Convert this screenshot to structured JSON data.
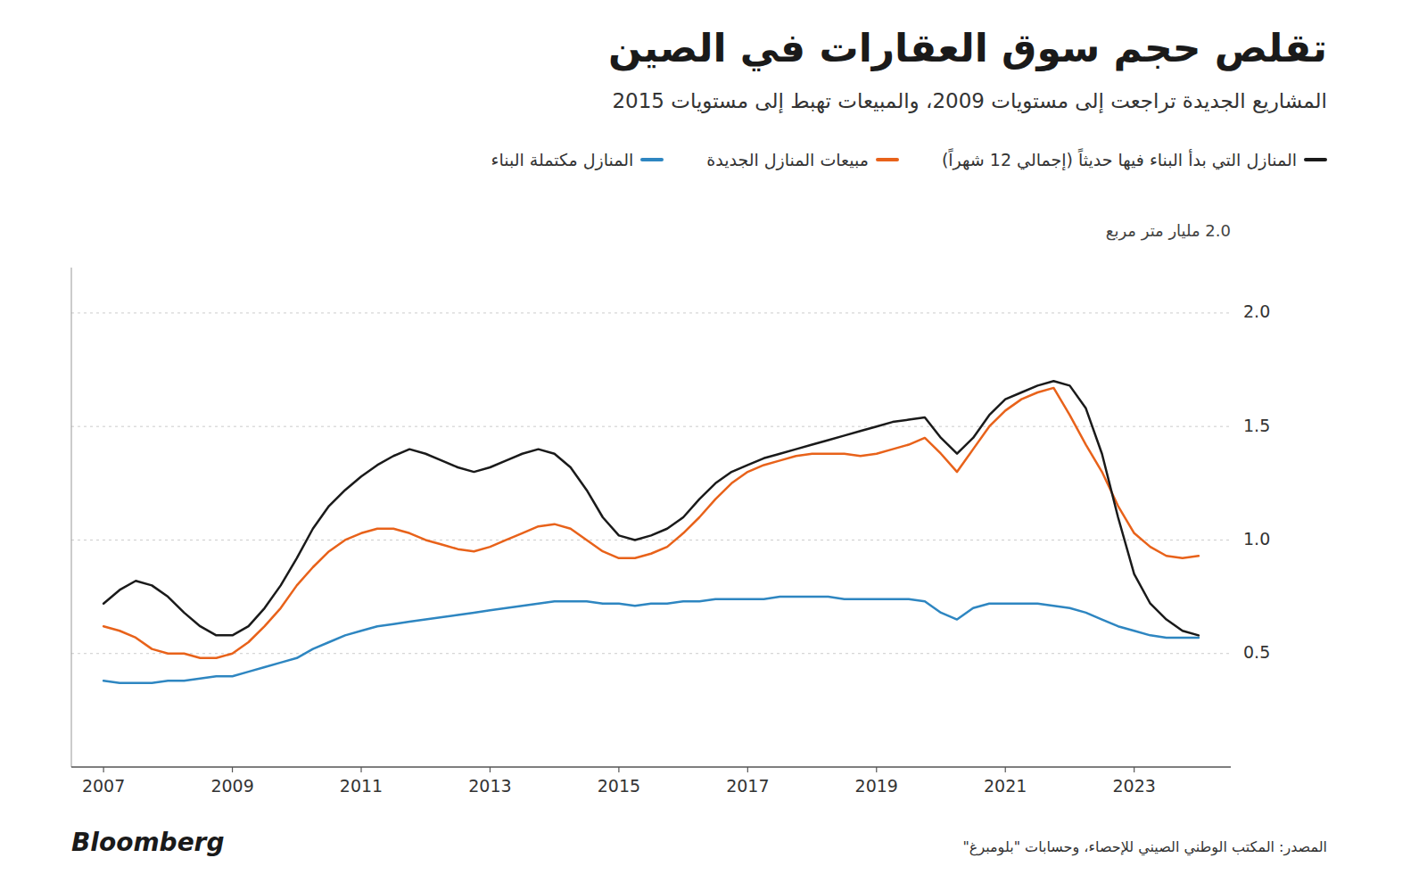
{
  "chart_data": {
    "type": "line",
    "title": "تقلص حجم سوق العقارات في الصين",
    "subtitle": "المشاريع الجديدة تراجعت إلى مستويات 2009، والمبيعات تهبط إلى مستويات 2015",
    "y_label": "2.0 مليار متر مربع",
    "source": "المصدر: المكتب الوطني الصيني للإحصاء، وحسابات \"بلومبرغ\"",
    "credit": "Bloomberg",
    "grid": true,
    "legend": "top",
    "xlim": [
      2006.5,
      2024.5
    ],
    "xticks": [
      2007,
      2009,
      2011,
      2013,
      2015,
      2017,
      2019,
      2021,
      2023
    ],
    "ylim": [
      0,
      2.2
    ],
    "yticks": [
      0.5,
      {
        "value": 1.0,
        "label": "1.0"
      },
      1.5,
      {
        "value": 2.0,
        "label": "2.0"
      }
    ],
    "x": [
      2007.0,
      2007.25,
      2007.5,
      2007.75,
      2008.0,
      2008.25,
      2008.5,
      2008.75,
      2009.0,
      2009.25,
      2009.5,
      2009.75,
      2010.0,
      2010.25,
      2010.5,
      2010.75,
      2011.0,
      2011.25,
      2011.5,
      2011.75,
      2012.0,
      2012.25,
      2012.5,
      2012.75,
      2013.0,
      2013.25,
      2013.5,
      2013.75,
      2014.0,
      2014.25,
      2014.5,
      2014.75,
      2015.0,
      2015.25,
      2015.5,
      2015.75,
      2016.0,
      2016.25,
      2016.5,
      2016.75,
      2017.0,
      2017.25,
      2017.5,
      2017.75,
      2018.0,
      2018.25,
      2018.5,
      2018.75,
      2019.0,
      2019.25,
      2019.5,
      2019.75,
      2020.0,
      2020.25,
      2020.5,
      2020.75,
      2021.0,
      2021.25,
      2021.5,
      2021.75,
      2022.0,
      2022.25,
      2022.5,
      2022.75,
      2023.0,
      2023.25,
      2023.5,
      2023.75,
      2024.0
    ],
    "series": [
      {
        "name": "المنازل التي بدأ البناء فيها حديثاً (إجمالي 12 شهراً)",
        "color": "#1A1A1A",
        "values": [
          0.72,
          0.78,
          0.82,
          0.8,
          0.75,
          0.68,
          0.62,
          0.58,
          0.58,
          0.62,
          0.7,
          0.8,
          0.92,
          1.05,
          1.15,
          1.22,
          1.28,
          1.33,
          1.37,
          1.4,
          1.38,
          1.35,
          1.32,
          1.3,
          1.32,
          1.35,
          1.38,
          1.4,
          1.38,
          1.32,
          1.22,
          1.1,
          1.02,
          1.0,
          1.02,
          1.05,
          1.1,
          1.18,
          1.25,
          1.3,
          1.33,
          1.36,
          1.38,
          1.4,
          1.42,
          1.44,
          1.46,
          1.48,
          1.5,
          1.52,
          1.53,
          1.54,
          1.45,
          1.38,
          1.45,
          1.55,
          1.62,
          1.65,
          1.68,
          1.7,
          1.68,
          1.58,
          1.38,
          1.1,
          0.85,
          0.72,
          0.65,
          0.6,
          0.58
        ]
      },
      {
        "name": "مبيعات المنازل الجديدة",
        "color": "#E8621A",
        "values": [
          0.62,
          0.6,
          0.57,
          0.52,
          0.5,
          0.5,
          0.48,
          0.48,
          0.5,
          0.55,
          0.62,
          0.7,
          0.8,
          0.88,
          0.95,
          1.0,
          1.03,
          1.05,
          1.05,
          1.03,
          1.0,
          0.98,
          0.96,
          0.95,
          0.97,
          1.0,
          1.03,
          1.06,
          1.07,
          1.05,
          1.0,
          0.95,
          0.92,
          0.92,
          0.94,
          0.97,
          1.03,
          1.1,
          1.18,
          1.25,
          1.3,
          1.33,
          1.35,
          1.37,
          1.38,
          1.38,
          1.38,
          1.37,
          1.38,
          1.4,
          1.42,
          1.45,
          1.38,
          1.3,
          1.4,
          1.5,
          1.57,
          1.62,
          1.65,
          1.67,
          1.55,
          1.42,
          1.3,
          1.15,
          1.03,
          0.97,
          0.93,
          0.92,
          0.93
        ]
      },
      {
        "name": "المنازل مكتملة البناء",
        "color": "#2E86C1",
        "values": [
          0.38,
          0.37,
          0.37,
          0.37,
          0.38,
          0.38,
          0.39,
          0.4,
          0.4,
          0.42,
          0.44,
          0.46,
          0.48,
          0.52,
          0.55,
          0.58,
          0.6,
          0.62,
          0.63,
          0.64,
          0.65,
          0.66,
          0.67,
          0.68,
          0.69,
          0.7,
          0.71,
          0.72,
          0.73,
          0.73,
          0.73,
          0.72,
          0.72,
          0.71,
          0.72,
          0.72,
          0.73,
          0.73,
          0.74,
          0.74,
          0.74,
          0.74,
          0.75,
          0.75,
          0.75,
          0.75,
          0.74,
          0.74,
          0.74,
          0.74,
          0.74,
          0.73,
          0.68,
          0.65,
          0.7,
          0.72,
          0.72,
          0.72,
          0.72,
          0.71,
          0.7,
          0.68,
          0.65,
          0.62,
          0.6,
          0.58,
          0.57,
          0.57,
          0.57
        ]
      }
    ]
  }
}
